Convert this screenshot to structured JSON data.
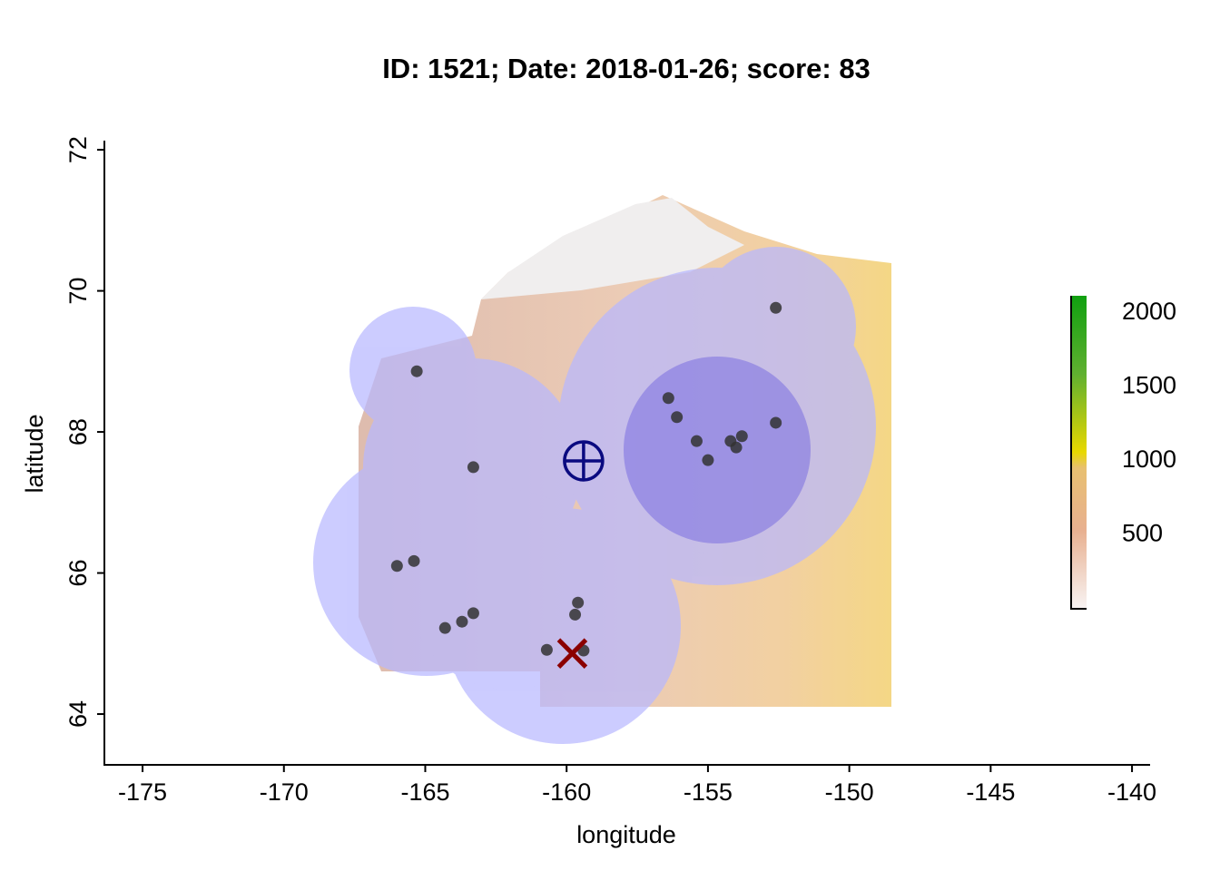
{
  "chart_data": {
    "type": "scatter",
    "title": "ID: 1521;  Date: 2018-01-26;  score: 83",
    "x_label": "longitude",
    "y_label": "latitude",
    "xlim": [
      -176.35,
      -139.36
    ],
    "ylim": [
      63.28,
      72.13
    ],
    "xticks": [
      -175,
      -170,
      -165,
      -160,
      -155,
      -150,
      -145,
      -140
    ],
    "yticks": [
      64,
      66,
      68,
      70,
      72
    ],
    "series": [
      {
        "name": "stations",
        "color": "#333333",
        "x": [
          -152.6,
          -165.3,
          -156.4,
          -156.1,
          -152.6,
          -155.4,
          -153.8,
          -154.2,
          -154.0,
          -155.0,
          -163.3,
          -165.4,
          -166.0,
          -159.6,
          -159.7,
          -163.3,
          -163.7,
          -164.3,
          -160.7,
          -159.4
        ],
        "values": [
          69.76,
          68.86,
          68.48,
          68.21,
          68.13,
          67.87,
          67.94,
          67.87,
          67.78,
          67.6,
          67.5,
          66.17,
          66.1,
          65.58,
          65.41,
          65.43,
          65.31,
          65.22,
          64.91,
          64.9
        ]
      },
      {
        "name": "target",
        "color": "#0a0a80",
        "x": [
          -159.4
        ],
        "values": [
          67.59
        ]
      },
      {
        "name": "estimate",
        "color": "#8b0000",
        "x": [
          -159.8
        ],
        "values": [
          64.86
        ]
      }
    ],
    "colorbar": {
      "lim": [
        0,
        2116
      ],
      "ticks": [
        500,
        1000,
        1500,
        2000
      ]
    }
  }
}
